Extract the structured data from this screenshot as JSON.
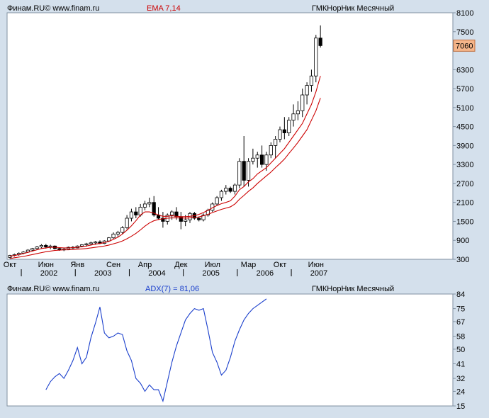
{
  "top_panel": {
    "source": "Финам.RU©  www.finam.ru",
    "indicator": "EMA 7,14",
    "instrument": "ГМКНорНик Месячный",
    "current_price": "7060"
  },
  "bottom_panel": {
    "source": "Финам.RU©  www.finam.ru",
    "indicator": "ADX(7) = 81,06",
    "instrument": "ГМКНорНик Месячный"
  },
  "colors": {
    "background": "#d4e0ec",
    "plot": "#ffffff",
    "ema": "#cc0000",
    "adx": "#1a3fcc",
    "price_tag": "#f5b58a"
  },
  "chart_data": [
    {
      "type": "candlestick",
      "title": "ГМКНорНик Месячный",
      "ylim": [
        300,
        8100
      ],
      "y_ticks": [
        300,
        900,
        1500,
        2100,
        2700,
        3300,
        3900,
        4500,
        5100,
        5700,
        6300,
        7060,
        7500,
        8100
      ],
      "month_labels": [
        {
          "label": "Окт",
          "i": 0
        },
        {
          "label": "Июн",
          "i": 8
        },
        {
          "label": "Янв",
          "i": 15
        },
        {
          "label": "Сен",
          "i": 23
        },
        {
          "label": "Апр",
          "i": 30
        },
        {
          "label": "Дек",
          "i": 38
        },
        {
          "label": "Июл",
          "i": 45
        },
        {
          "label": "Мар",
          "i": 53
        },
        {
          "label": "Окт",
          "i": 60
        },
        {
          "label": "Июн",
          "i": 68
        }
      ],
      "year_labels": [
        {
          "label": "2002",
          "i": 3
        },
        {
          "label": "2003",
          "i": 15
        },
        {
          "label": "2004",
          "i": 27
        },
        {
          "label": "2005",
          "i": 39
        },
        {
          "label": "2006",
          "i": 51
        },
        {
          "label": "2007",
          "i": 63
        }
      ],
      "year_separators": [
        3,
        15,
        27,
        39,
        51,
        63
      ],
      "x_start": "2001-10",
      "ema": [
        {
          "name": "EMA 7",
          "values": [
            400,
            420,
            450,
            480,
            520,
            560,
            600,
            640,
            660,
            680,
            680,
            670,
            660,
            660,
            670,
            680,
            700,
            720,
            750,
            780,
            800,
            830,
            870,
            930,
            1000,
            1100,
            1220,
            1360,
            1520,
            1700,
            1800,
            1800,
            1760,
            1700,
            1660,
            1660,
            1680,
            1660,
            1650,
            1650,
            1660,
            1680,
            1720,
            1780,
            1850,
            1930,
            2000,
            2060,
            2100,
            2150,
            2300,
            2500,
            2600,
            2750,
            2850,
            3000,
            3100,
            3200,
            3350,
            3500,
            3650,
            3800,
            4000,
            4200,
            4400,
            4600,
            4900,
            5200,
            5600,
            6100
          ]
        },
        {
          "name": "EMA 14",
          "values": [
            320,
            350,
            370,
            390,
            420,
            450,
            480,
            510,
            540,
            560,
            580,
            590,
            600,
            600,
            610,
            620,
            630,
            640,
            660,
            680,
            700,
            720,
            750,
            790,
            830,
            880,
            950,
            1030,
            1120,
            1230,
            1350,
            1450,
            1520,
            1560,
            1580,
            1600,
            1610,
            1610,
            1610,
            1600,
            1610,
            1620,
            1640,
            1680,
            1720,
            1780,
            1830,
            1880,
            1920,
            1960,
            2050,
            2200,
            2320,
            2450,
            2560,
            2700,
            2820,
            2940,
            3060,
            3200,
            3330,
            3470,
            3650,
            3820,
            4000,
            4200,
            4400,
            4700,
            5000,
            5400
          ]
        }
      ],
      "candles": [
        {
          "o": 360,
          "h": 440,
          "l": 330,
          "c": 420
        },
        {
          "o": 420,
          "h": 480,
          "l": 390,
          "c": 450
        },
        {
          "o": 450,
          "h": 520,
          "l": 410,
          "c": 490
        },
        {
          "o": 490,
          "h": 560,
          "l": 460,
          "c": 530
        },
        {
          "o": 530,
          "h": 620,
          "l": 500,
          "c": 590
        },
        {
          "o": 590,
          "h": 660,
          "l": 550,
          "c": 640
        },
        {
          "o": 640,
          "h": 720,
          "l": 600,
          "c": 690
        },
        {
          "o": 690,
          "h": 780,
          "l": 650,
          "c": 740
        },
        {
          "o": 740,
          "h": 790,
          "l": 640,
          "c": 690
        },
        {
          "o": 690,
          "h": 760,
          "l": 620,
          "c": 720
        },
        {
          "o": 720,
          "h": 740,
          "l": 610,
          "c": 640
        },
        {
          "o": 640,
          "h": 680,
          "l": 570,
          "c": 600
        },
        {
          "o": 600,
          "h": 650,
          "l": 560,
          "c": 620
        },
        {
          "o": 620,
          "h": 700,
          "l": 600,
          "c": 680
        },
        {
          "o": 680,
          "h": 720,
          "l": 630,
          "c": 660
        },
        {
          "o": 660,
          "h": 740,
          "l": 650,
          "c": 720
        },
        {
          "o": 720,
          "h": 780,
          "l": 680,
          "c": 760
        },
        {
          "o": 760,
          "h": 820,
          "l": 700,
          "c": 790
        },
        {
          "o": 790,
          "h": 860,
          "l": 740,
          "c": 820
        },
        {
          "o": 820,
          "h": 880,
          "l": 760,
          "c": 850
        },
        {
          "o": 850,
          "h": 900,
          "l": 780,
          "c": 800
        },
        {
          "o": 800,
          "h": 900,
          "l": 780,
          "c": 880
        },
        {
          "o": 880,
          "h": 1000,
          "l": 850,
          "c": 980
        },
        {
          "o": 980,
          "h": 1150,
          "l": 950,
          "c": 1100
        },
        {
          "o": 1100,
          "h": 1200,
          "l": 1000,
          "c": 1150
        },
        {
          "o": 1150,
          "h": 1350,
          "l": 1100,
          "c": 1300
        },
        {
          "o": 1300,
          "h": 1700,
          "l": 1250,
          "c": 1600
        },
        {
          "o": 1600,
          "h": 1900,
          "l": 1500,
          "c": 1800
        },
        {
          "o": 1800,
          "h": 1950,
          "l": 1600,
          "c": 1700
        },
        {
          "o": 1700,
          "h": 2050,
          "l": 1650,
          "c": 1950
        },
        {
          "o": 1950,
          "h": 2150,
          "l": 1850,
          "c": 2050
        },
        {
          "o": 2050,
          "h": 2250,
          "l": 1950,
          "c": 2100
        },
        {
          "o": 2100,
          "h": 2300,
          "l": 1650,
          "c": 1700
        },
        {
          "o": 1700,
          "h": 1950,
          "l": 1550,
          "c": 1600
        },
        {
          "o": 1600,
          "h": 1800,
          "l": 1300,
          "c": 1500
        },
        {
          "o": 1500,
          "h": 1750,
          "l": 1400,
          "c": 1700
        },
        {
          "o": 1700,
          "h": 1850,
          "l": 1550,
          "c": 1800
        },
        {
          "o": 1800,
          "h": 1950,
          "l": 1550,
          "c": 1650
        },
        {
          "o": 1650,
          "h": 1800,
          "l": 1250,
          "c": 1500
        },
        {
          "o": 1500,
          "h": 1700,
          "l": 1350,
          "c": 1550
        },
        {
          "o": 1550,
          "h": 1800,
          "l": 1450,
          "c": 1750
        },
        {
          "o": 1750,
          "h": 1800,
          "l": 1550,
          "c": 1600
        },
        {
          "o": 1600,
          "h": 1650,
          "l": 1500,
          "c": 1550
        },
        {
          "o": 1550,
          "h": 1750,
          "l": 1500,
          "c": 1700
        },
        {
          "o": 1700,
          "h": 1900,
          "l": 1650,
          "c": 1850
        },
        {
          "o": 1850,
          "h": 2100,
          "l": 1800,
          "c": 2050
        },
        {
          "o": 2050,
          "h": 2300,
          "l": 2000,
          "c": 2250
        },
        {
          "o": 2250,
          "h": 2500,
          "l": 2150,
          "c": 2450
        },
        {
          "o": 2450,
          "h": 2650,
          "l": 2350,
          "c": 2550
        },
        {
          "o": 2550,
          "h": 2600,
          "l": 2400,
          "c": 2450
        },
        {
          "o": 2450,
          "h": 2700,
          "l": 2350,
          "c": 2650
        },
        {
          "o": 2650,
          "h": 3500,
          "l": 2550,
          "c": 3400
        },
        {
          "o": 3400,
          "h": 4200,
          "l": 2600,
          "c": 2800
        },
        {
          "o": 2800,
          "h": 3500,
          "l": 2600,
          "c": 3400
        },
        {
          "o": 3400,
          "h": 3800,
          "l": 3300,
          "c": 3500
        },
        {
          "o": 3500,
          "h": 3700,
          "l": 3200,
          "c": 3600
        },
        {
          "o": 3600,
          "h": 3900,
          "l": 3200,
          "c": 3300
        },
        {
          "o": 3300,
          "h": 3700,
          "l": 3100,
          "c": 3600
        },
        {
          "o": 3600,
          "h": 4000,
          "l": 3500,
          "c": 3900
        },
        {
          "o": 3900,
          "h": 4200,
          "l": 3500,
          "c": 4100
        },
        {
          "o": 4100,
          "h": 4500,
          "l": 4000,
          "c": 4400
        },
        {
          "o": 4400,
          "h": 4800,
          "l": 4100,
          "c": 4300
        },
        {
          "o": 4300,
          "h": 4800,
          "l": 4200,
          "c": 4700
        },
        {
          "o": 4700,
          "h": 5200,
          "l": 4500,
          "c": 4900
        },
        {
          "o": 4900,
          "h": 5300,
          "l": 4700,
          "c": 5000
        },
        {
          "o": 5000,
          "h": 5700,
          "l": 4800,
          "c": 5500
        },
        {
          "o": 5500,
          "h": 5900,
          "l": 5200,
          "c": 5800
        },
        {
          "o": 5800,
          "h": 6300,
          "l": 5600,
          "c": 6100
        },
        {
          "o": 6100,
          "h": 7400,
          "l": 5900,
          "c": 7300
        },
        {
          "o": 7300,
          "h": 7700,
          "l": 7000,
          "c": 7060
        }
      ]
    },
    {
      "type": "line",
      "title": "ADX(7) = 81,06",
      "ylim": [
        15,
        84
      ],
      "y_ticks": [
        15,
        24,
        32,
        41,
        50,
        58,
        67,
        75,
        84
      ],
      "series": [
        {
          "name": "ADX(7)",
          "start_index": 8,
          "values": [
            25,
            30,
            33,
            35,
            32,
            37,
            43,
            51,
            41,
            45,
            57,
            66,
            76,
            60,
            57,
            58,
            60,
            59,
            49,
            43,
            32,
            29,
            24,
            28,
            25,
            25,
            18,
            30,
            42,
            52,
            60,
            68,
            72,
            75,
            74,
            75,
            62,
            48,
            42,
            34,
            37,
            45,
            55,
            62,
            68,
            72,
            75,
            77,
            79,
            81
          ]
        }
      ]
    }
  ]
}
